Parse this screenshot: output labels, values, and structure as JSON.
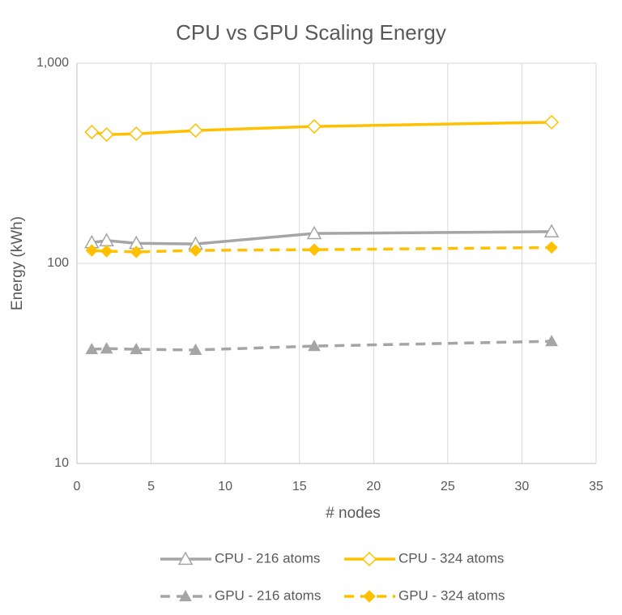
{
  "chart_data": {
    "type": "line",
    "title": "CPU vs GPU Scaling Energy",
    "x_label": "# nodes",
    "y_label": "Energy (kWh)",
    "x": [
      1,
      2,
      4,
      8,
      16,
      32
    ],
    "xlim": [
      0,
      35
    ],
    "xticks": [
      0,
      5,
      10,
      15,
      20,
      25,
      30,
      35
    ],
    "ylim": [
      10,
      1000
    ],
    "yticks": [
      10,
      100,
      {
        "value": 1000,
        "label": "1,000"
      }
    ],
    "log_y": true,
    "grid": true,
    "legend": "bottom",
    "series": [
      {
        "name": "CPU - 216 atoms",
        "color": "#a5a5a5",
        "line_style": "solid",
        "marker": "triangle-open",
        "values": [
          127,
          130,
          126,
          125,
          141,
          144
        ]
      },
      {
        "name": "CPU - 324 atoms",
        "color": "#ffc000",
        "line_style": "solid",
        "marker": "diamond-open",
        "values": [
          453,
          440,
          444,
          461,
          483,
          507
        ]
      },
      {
        "name": "GPU - 216 atoms",
        "color": "#a5a5a5",
        "line_style": "dashed",
        "marker": "triangle",
        "values": [
          37.2,
          37.5,
          37.2,
          36.9,
          38.6,
          40.8
        ]
      },
      {
        "name": "GPU - 324 atoms",
        "color": "#ffc000",
        "line_style": "dashed",
        "marker": "diamond",
        "values": [
          116,
          115,
          114,
          116,
          117,
          120
        ]
      }
    ]
  }
}
